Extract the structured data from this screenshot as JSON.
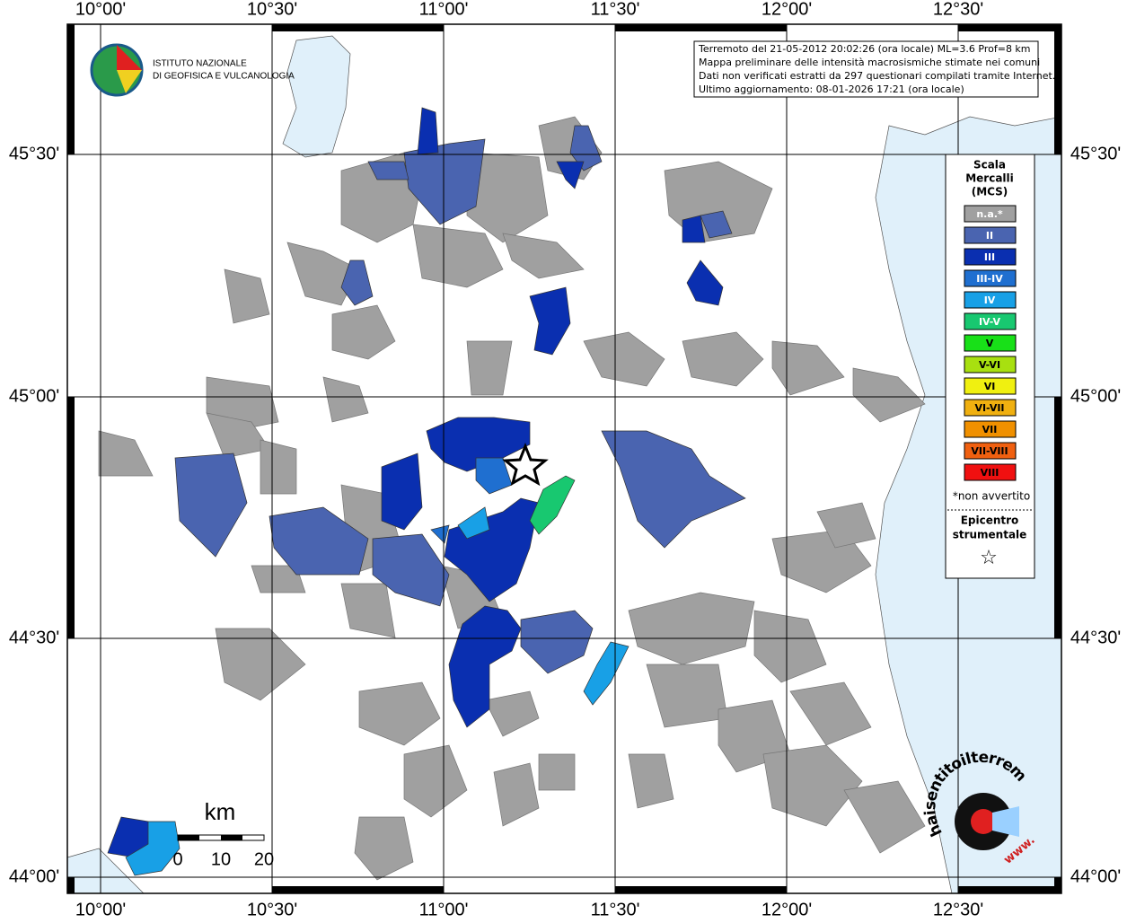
{
  "header": {
    "logo_line1": "ISTITUTO NAZIONALE",
    "logo_line2": "DI GEOFISICA E VULCANOLOGIA"
  },
  "info": [
    "Terremoto del 21-05-2012 20:02:26 (ora locale) ML=3.6 Prof=8 km",
    "Mappa preliminare delle intensità macrosismiche stimate nei comuni",
    "Dati non verificati estratti da 297 questionari compilati tramite Internet.",
    "Ultimo aggiornamento: 08-01-2026 17:21 (ora locale)"
  ],
  "lon_labels": [
    "10°00'",
    "10°30'",
    "11°00'",
    "11°30'",
    "12°00'",
    "12°30'"
  ],
  "lat_labels": [
    "45°30'",
    "45°00'",
    "44°30'",
    "44°00'"
  ],
  "legend": {
    "title": [
      "Scala",
      "Mercalli",
      "(MCS)"
    ],
    "items": [
      {
        "label": "n.a.*",
        "color": "#a0a0a0"
      },
      {
        "label": "II",
        "color": "#4a64b0"
      },
      {
        "label": "III",
        "color": "#0a2fb0"
      },
      {
        "label": "III-IV",
        "color": "#1f6fd0"
      },
      {
        "label": "IV",
        "color": "#18a0e6"
      },
      {
        "label": "IV-V",
        "color": "#18c870"
      },
      {
        "label": "V",
        "color": "#18e018"
      },
      {
        "label": "V-VI",
        "color": "#a8e010"
      },
      {
        "label": "VI",
        "color": "#f0f010"
      },
      {
        "label": "VI-VII",
        "color": "#f0b010"
      },
      {
        "label": "VII",
        "color": "#f09000"
      },
      {
        "label": "VII-VIII",
        "color": "#f06010"
      },
      {
        "label": "VIII",
        "color": "#f01010"
      }
    ],
    "note": "*non avvertito",
    "epicenter_title": [
      "Epicentro",
      "strumentale"
    ],
    "epicenter_symbol": "☆"
  },
  "scale": {
    "unit": "km",
    "labels": [
      "0",
      "10",
      "20"
    ]
  },
  "watermark": {
    "text": "haisentitoilterremoto.it",
    "www": "www."
  }
}
